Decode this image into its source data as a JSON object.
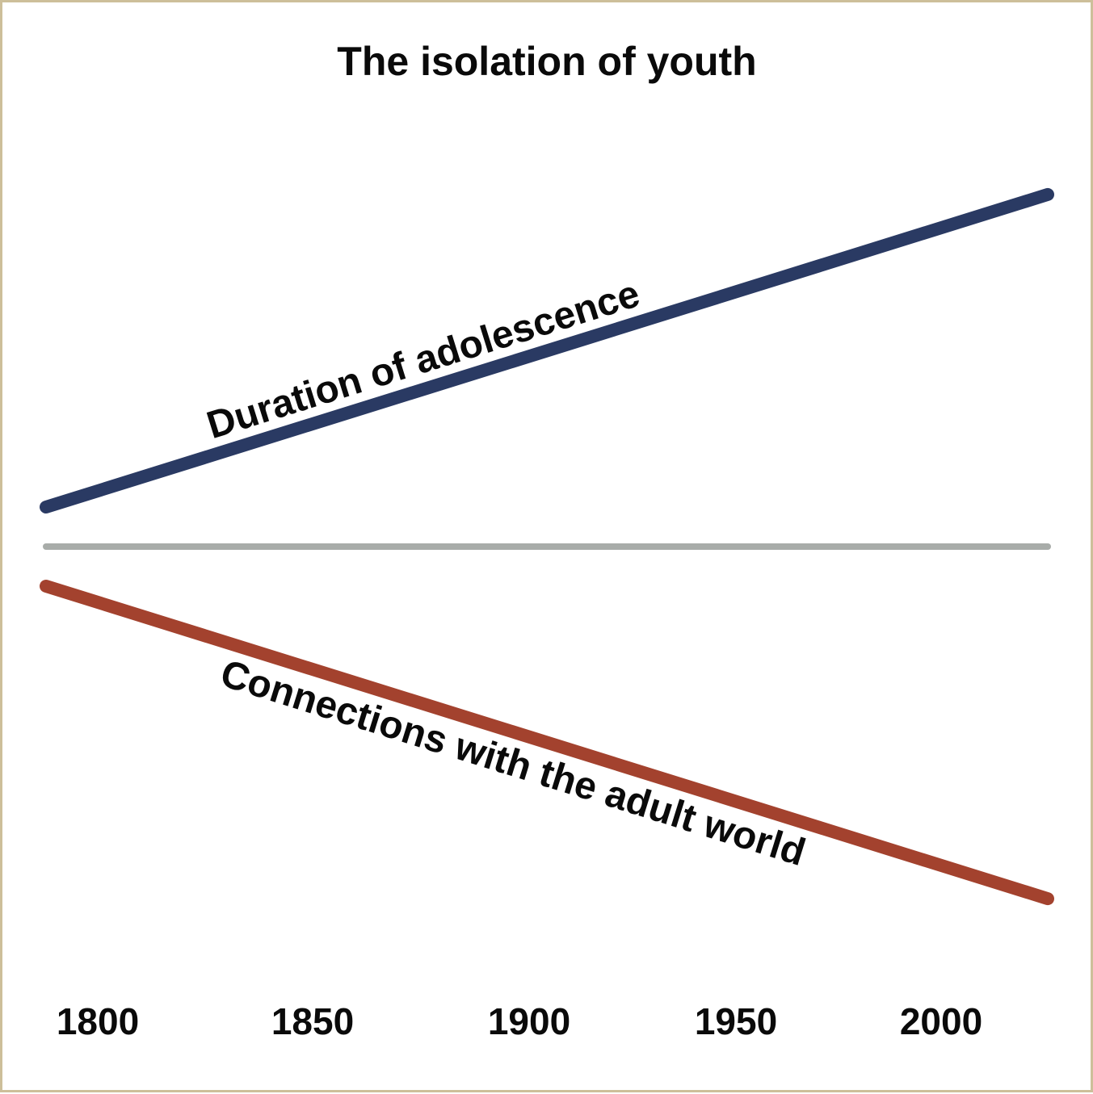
{
  "chart_data": {
    "type": "line",
    "title": "The isolation of youth",
    "xlabel": "",
    "ylabel": "",
    "x_ticks": [
      "1800",
      "1850",
      "1900",
      "1950",
      "2000"
    ],
    "xlim": [
      1800,
      2030
    ],
    "grid": false,
    "legend": "none",
    "series": [
      {
        "name": "Duration of adolescence",
        "color": "#2a3a63",
        "points": [
          [
            1800,
            0.1
          ],
          [
            2030,
            0.89
          ]
        ]
      },
      {
        "name": "Connections with the adult world",
        "color": "#a3422e",
        "points": [
          [
            1800,
            -0.1
          ],
          [
            2030,
            -0.89
          ]
        ]
      }
    ],
    "baseline": {
      "color": "#a8aca9",
      "value": 0
    }
  }
}
